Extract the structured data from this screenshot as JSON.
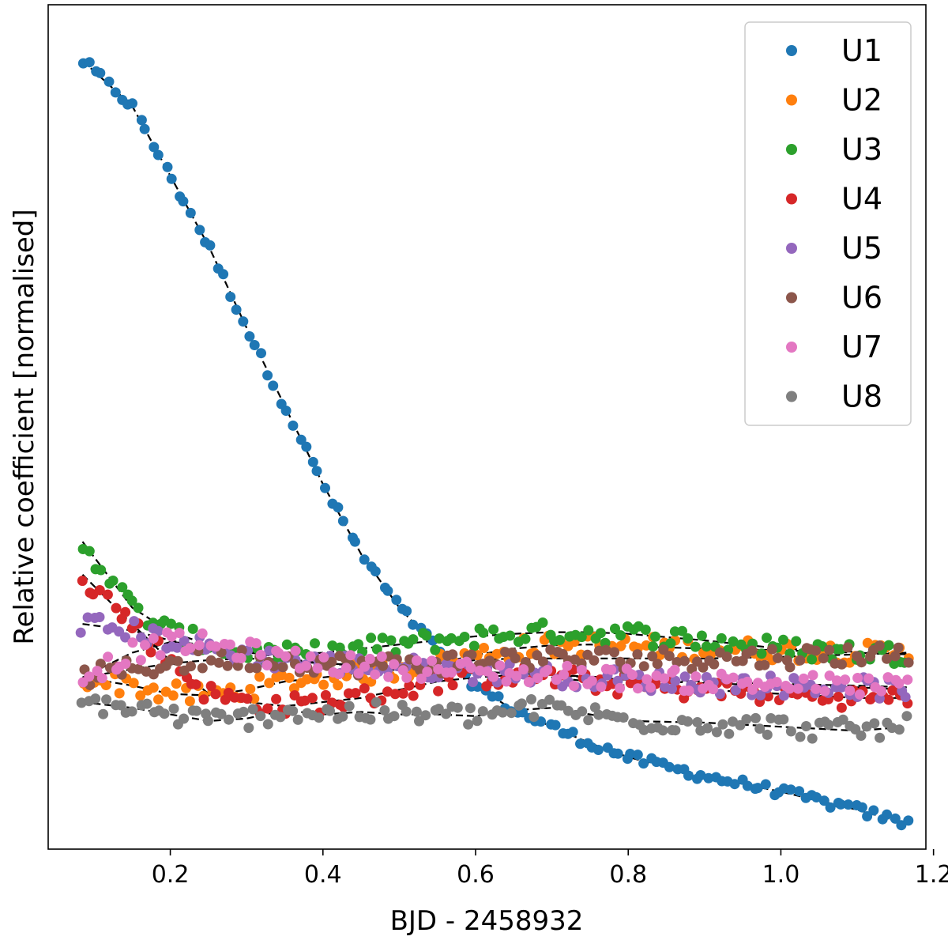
{
  "chart_data": {
    "type": "scatter",
    "title": "",
    "xlabel": "BJD - 2458932",
    "ylabel": "Relative coefficient [normalised]",
    "xlim": [
      0.04,
      1.19
    ],
    "ylim": [
      0.0,
      1.0
    ],
    "xticks": [
      0.2,
      0.4,
      0.6,
      0.8,
      1.0,
      1.2
    ],
    "xtick_labels": [
      "0.2",
      "0.4",
      "0.6",
      "0.8",
      "1.0",
      "1.2"
    ],
    "yticks_visible": false,
    "legend_position": "top-right",
    "fit_style": "black dashed",
    "series": [
      {
        "name": "U1",
        "color": "#1f77b4",
        "fit_x": [
          0.085,
          0.15,
          0.2,
          0.25,
          0.3,
          0.35,
          0.4,
          0.45,
          0.5,
          0.55,
          0.6,
          0.65,
          0.7,
          0.75,
          0.8,
          0.9,
          1.0,
          1.1,
          1.165
        ],
        "fit_y": [
          0.955,
          0.9,
          0.815,
          0.73,
          0.63,
          0.535,
          0.44,
          0.355,
          0.29,
          0.24,
          0.195,
          0.165,
          0.145,
          0.125,
          0.108,
          0.085,
          0.066,
          0.044,
          0.027
        ]
      },
      {
        "name": "U2",
        "color": "#ff7f0e",
        "fit_x": [
          0.085,
          0.15,
          0.2,
          0.25,
          0.3,
          0.35,
          0.4,
          0.45,
          0.5,
          0.55,
          0.6,
          0.65,
          0.7,
          0.75,
          0.8,
          0.9,
          1.0,
          1.1,
          1.165
        ],
        "fit_y": [
          0.205,
          0.195,
          0.185,
          0.183,
          0.19,
          0.2,
          0.205,
          0.21,
          0.215,
          0.222,
          0.232,
          0.24,
          0.244,
          0.245,
          0.243,
          0.24,
          0.238,
          0.235,
          0.233
        ]
      },
      {
        "name": "U3",
        "color": "#2ca02c",
        "fit_x": [
          0.085,
          0.15,
          0.2,
          0.25,
          0.3,
          0.35,
          0.4,
          0.45,
          0.5,
          0.55,
          0.6,
          0.65,
          0.7,
          0.75,
          0.8,
          0.9,
          1.0,
          1.1,
          1.165
        ],
        "fit_y": [
          0.37,
          0.29,
          0.26,
          0.245,
          0.235,
          0.232,
          0.235,
          0.24,
          0.245,
          0.25,
          0.255,
          0.258,
          0.26,
          0.26,
          0.258,
          0.25,
          0.24,
          0.236,
          0.233
        ]
      },
      {
        "name": "U4",
        "color": "#d62728",
        "fit_x": [
          0.085,
          0.15,
          0.2,
          0.25,
          0.3,
          0.35,
          0.4,
          0.45,
          0.5,
          0.55,
          0.6,
          0.65,
          0.7,
          0.75,
          0.8,
          0.9,
          1.0,
          1.1,
          1.165
        ],
        "fit_y": [
          0.33,
          0.27,
          0.225,
          0.185,
          0.175,
          0.17,
          0.175,
          0.18,
          0.19,
          0.2,
          0.205,
          0.208,
          0.205,
          0.2,
          0.195,
          0.19,
          0.185,
          0.18,
          0.18
        ]
      },
      {
        "name": "U5",
        "color": "#9467bd",
        "fit_x": [
          0.085,
          0.15,
          0.2,
          0.25,
          0.3,
          0.35,
          0.4,
          0.45,
          0.5,
          0.55,
          0.6,
          0.65,
          0.7,
          0.75,
          0.8,
          0.9,
          1.0,
          1.1,
          1.165
        ],
        "fit_y": [
          0.27,
          0.262,
          0.25,
          0.24,
          0.232,
          0.225,
          0.222,
          0.22,
          0.218,
          0.215,
          0.212,
          0.21,
          0.208,
          0.205,
          0.202,
          0.198,
          0.195,
          0.193,
          0.19
        ]
      },
      {
        "name": "U6",
        "color": "#8c564b",
        "fit_x": [
          0.085,
          0.15,
          0.2,
          0.25,
          0.3,
          0.35,
          0.4,
          0.45,
          0.5,
          0.55,
          0.6,
          0.65,
          0.7,
          0.75,
          0.8,
          0.9,
          1.0,
          1.1,
          1.165
        ],
        "fit_y": [
          0.205,
          0.215,
          0.222,
          0.226,
          0.228,
          0.226,
          0.222,
          0.22,
          0.22,
          0.222,
          0.226,
          0.228,
          0.228,
          0.228,
          0.228,
          0.228,
          0.23,
          0.233,
          0.235
        ]
      },
      {
        "name": "U7",
        "color": "#e377c2",
        "fit_x": [
          0.085,
          0.15,
          0.2,
          0.25,
          0.3,
          0.35,
          0.4,
          0.45,
          0.5,
          0.55,
          0.6,
          0.65,
          0.7,
          0.75,
          0.8,
          0.9,
          1.0,
          1.1,
          1.165
        ],
        "fit_y": [
          0.205,
          0.235,
          0.248,
          0.245,
          0.237,
          0.228,
          0.222,
          0.219,
          0.218,
          0.215,
          0.212,
          0.21,
          0.208,
          0.206,
          0.204,
          0.2,
          0.197,
          0.195,
          0.193
        ]
      },
      {
        "name": "U8",
        "color": "#7f7f7f",
        "fit_x": [
          0.085,
          0.15,
          0.2,
          0.25,
          0.3,
          0.35,
          0.4,
          0.45,
          0.5,
          0.55,
          0.6,
          0.65,
          0.7,
          0.75,
          0.8,
          0.9,
          1.0,
          1.1,
          1.165
        ],
        "fit_y": [
          0.175,
          0.168,
          0.16,
          0.152,
          0.155,
          0.165,
          0.16,
          0.163,
          0.16,
          0.16,
          0.158,
          0.165,
          0.168,
          0.16,
          0.152,
          0.15,
          0.145,
          0.14,
          0.145
        ]
      }
    ]
  }
}
